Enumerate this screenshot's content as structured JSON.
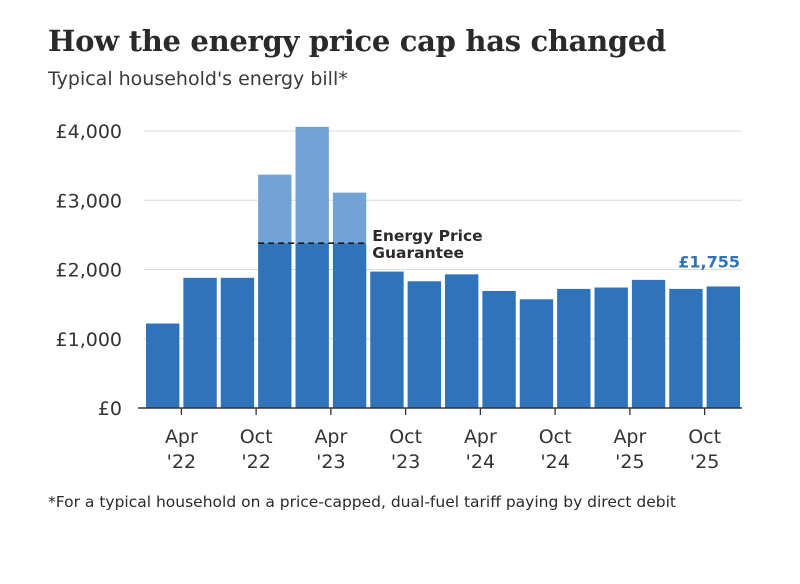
{
  "title": "How the energy price cap has changed",
  "subtitle": "Typical household's energy bill*",
  "footnote": "*For a typical household on a price-capped, dual-fuel tariff paying by direct debit",
  "colors": {
    "bar": "#2f73bb",
    "bar_excess": "#72a3d5",
    "grid": "#dcdcdc",
    "axis": "#333333",
    "label_accent": "#2f73bb"
  },
  "chart_data": {
    "type": "bar",
    "title": "How the energy price cap has changed",
    "subtitle": "Typical household's energy bill*",
    "ylim": [
      0,
      4000
    ],
    "y_ticks": [
      {
        "value": 0,
        "label": "£0"
      },
      {
        "value": 1000,
        "label": "£1,000"
      },
      {
        "value": 2000,
        "label": "£2,000"
      },
      {
        "value": 3000,
        "label": "£3,000"
      },
      {
        "value": 4000,
        "label": "£4,000"
      }
    ],
    "x_ticks": [
      {
        "index": 1,
        "line1": "Apr",
        "line2": "'22"
      },
      {
        "index": 3,
        "line1": "Oct",
        "line2": "'22"
      },
      {
        "index": 5,
        "line1": "Apr",
        "line2": "'23"
      },
      {
        "index": 7,
        "line1": "Oct",
        "line2": "'23"
      },
      {
        "index": 9,
        "line1": "Apr",
        "line2": "'24"
      },
      {
        "index": 11,
        "line1": "Oct",
        "line2": "'24"
      },
      {
        "index": 13,
        "line1": "Apr",
        "line2": "'25"
      },
      {
        "index": 15,
        "line1": "Oct",
        "line2": "'25"
      }
    ],
    "bars": [
      {
        "cap": 1220,
        "paid": 1220
      },
      {
        "cap": 1880,
        "paid": 1880
      },
      {
        "cap": 1880,
        "paid": 1880
      },
      {
        "cap": 3370,
        "paid": 2380
      },
      {
        "cap": 4060,
        "paid": 2380
      },
      {
        "cap": 3110,
        "paid": 2380
      },
      {
        "cap": 1970,
        "paid": 1970
      },
      {
        "cap": 1830,
        "paid": 1830
      },
      {
        "cap": 1930,
        "paid": 1930
      },
      {
        "cap": 1690,
        "paid": 1690
      },
      {
        "cap": 1570,
        "paid": 1570
      },
      {
        "cap": 1720,
        "paid": 1720
      },
      {
        "cap": 1740,
        "paid": 1740
      },
      {
        "cap": 1850,
        "paid": 1850
      },
      {
        "cap": 1720,
        "paid": 1720
      },
      {
        "cap": 1755,
        "paid": 1755
      }
    ],
    "guarantee": {
      "value": 2380,
      "label_line1": "Energy Price",
      "label_line2": "Guarantee",
      "from_index": 3,
      "to_index": 5
    },
    "last_label": "£1,755"
  }
}
